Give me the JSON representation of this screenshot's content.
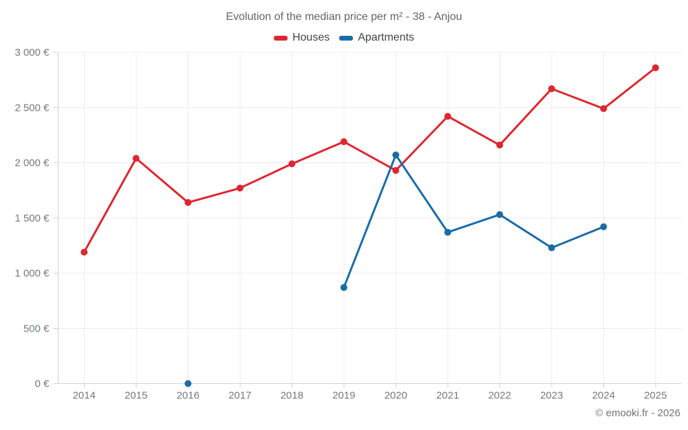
{
  "header": {
    "title": "Evolution of the median price per m² - 38 - Anjou"
  },
  "footer": {
    "copyright": "© emooki.fr - 2026"
  },
  "colors": {
    "houses": "#dc2731",
    "apartments": "#1a6ca5",
    "grid": "#ececec",
    "axis": "#d2d2d2",
    "tick_label": "#75797c"
  },
  "chart_data": {
    "type": "line",
    "title": "Evolution of the median price per m² - 38 - Anjou",
    "categories": [
      "2014",
      "2015",
      "2016",
      "2017",
      "2018",
      "2019",
      "2020",
      "2021",
      "2022",
      "2023",
      "2024",
      "2025"
    ],
    "series": [
      {
        "name": "Houses",
        "color": "#dc2731",
        "values": [
          1190,
          2040,
          1640,
          1770,
          1990,
          2190,
          1930,
          2420,
          2160,
          2670,
          2490,
          2860
        ]
      },
      {
        "name": "Apartments",
        "color": "#1a6ca5",
        "values": [
          null,
          null,
          0,
          null,
          null,
          870,
          2070,
          1370,
          1530,
          1230,
          1420,
          null
        ]
      }
    ],
    "xlabel": "",
    "ylabel": "",
    "ylim": [
      0,
      3000
    ],
    "yticks": [
      0,
      500,
      1000,
      1500,
      2000,
      2500,
      3000
    ],
    "ytick_labels": [
      "0 €",
      "500 €",
      "1 000 €",
      "1 500 €",
      "2 000 €",
      "2 500 €",
      "3 000 €"
    ],
    "grid": true,
    "legend_position": "top",
    "marker_radius": 5,
    "line_width": 3
  }
}
